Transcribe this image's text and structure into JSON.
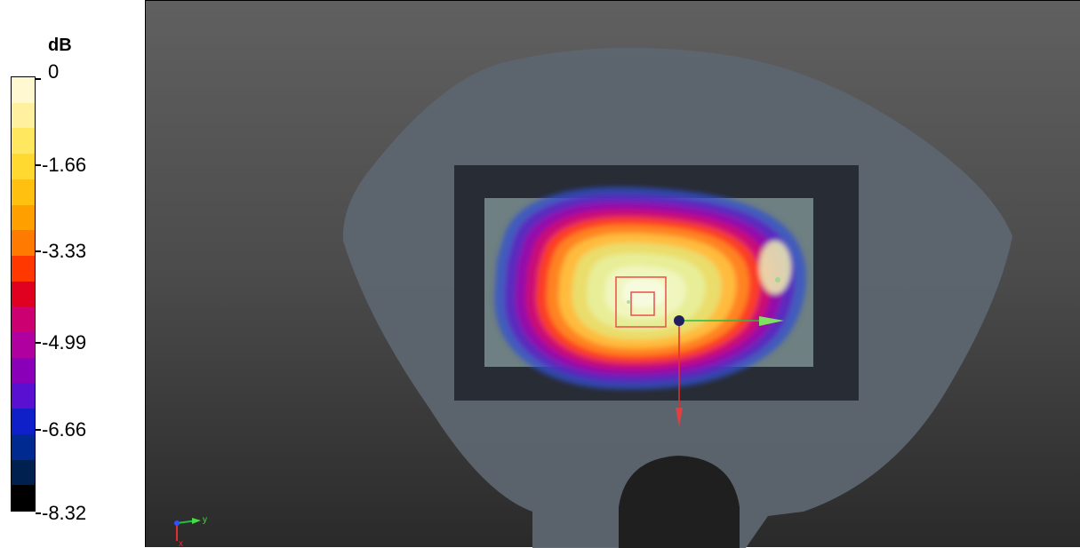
{
  "legend": {
    "unit": "dB",
    "tick_labels": [
      "0",
      "-1.66",
      "-3.33",
      "-4.99",
      "-6.66",
      "-8.32"
    ],
    "colors": [
      "#fff8d0",
      "#fff0a0",
      "#ffe860",
      "#ffd830",
      "#ffc010",
      "#ffa000",
      "#ff7a00",
      "#ff3800",
      "#e00020",
      "#cc0070",
      "#b000a0",
      "#8a00b8",
      "#5a10d0",
      "#1020c8",
      "#002a90",
      "#002050",
      "#000000"
    ]
  },
  "view": {
    "axes": {
      "y_label": "y",
      "x_label": "x"
    },
    "colors": {
      "phantom": "#5d6570",
      "grid_frame": "#282c35",
      "scan_area": "#768a8a"
    }
  }
}
